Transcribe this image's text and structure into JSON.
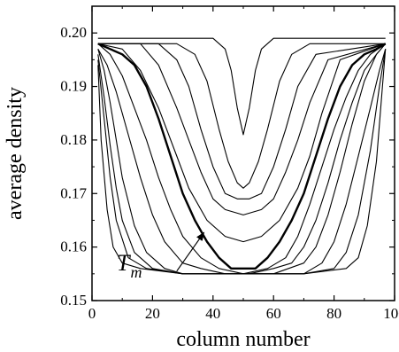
{
  "chart_data": {
    "type": "line",
    "xlabel": "column number",
    "ylabel": "average density",
    "xlim": [
      0,
      100
    ],
    "ylim": [
      0.15,
      0.205
    ],
    "xticks": [
      0,
      20,
      40,
      60,
      80,
      100
    ],
    "yticks": [
      0.15,
      0.16,
      0.17,
      0.18,
      0.19,
      0.2
    ],
    "ytick_labels": [
      "0.15",
      "0.16",
      "0.17",
      "0.18",
      "0.19",
      "0.20"
    ],
    "annotation": {
      "text_main": "T",
      "text_sub": "m",
      "arrow_from": [
        28,
        0.1555
      ],
      "arrow_to": [
        37,
        0.1627
      ]
    },
    "series": [
      {
        "bold": false,
        "x": [
          2,
          40,
          44,
          46,
          48,
          50,
          52,
          54,
          56,
          60,
          97
        ],
        "y": [
          0.199,
          0.199,
          0.197,
          0.193,
          0.186,
          0.181,
          0.186,
          0.193,
          0.197,
          0.199,
          0.199
        ]
      },
      {
        "bold": false,
        "x": [
          2,
          28,
          34,
          38,
          42,
          45,
          48,
          50,
          52,
          55,
          58,
          62,
          66,
          72,
          97
        ],
        "y": [
          0.198,
          0.198,
          0.196,
          0.191,
          0.182,
          0.176,
          0.172,
          0.171,
          0.172,
          0.176,
          0.182,
          0.191,
          0.196,
          0.198,
          0.198
        ]
      },
      {
        "bold": false,
        "x": [
          2,
          22,
          28,
          32,
          36,
          40,
          44,
          48,
          52,
          56,
          60,
          64,
          68,
          74,
          97
        ],
        "y": [
          0.198,
          0.198,
          0.195,
          0.19,
          0.182,
          0.175,
          0.17,
          0.169,
          0.169,
          0.17,
          0.175,
          0.182,
          0.19,
          0.196,
          0.198
        ]
      },
      {
        "bold": false,
        "x": [
          2,
          16,
          22,
          28,
          32,
          36,
          40,
          44,
          50,
          56,
          60,
          64,
          68,
          72,
          78,
          97
        ],
        "y": [
          0.198,
          0.198,
          0.194,
          0.186,
          0.18,
          0.174,
          0.169,
          0.167,
          0.166,
          0.167,
          0.169,
          0.174,
          0.18,
          0.187,
          0.195,
          0.198
        ]
      },
      {
        "bold": false,
        "x": [
          2,
          10,
          16,
          22,
          28,
          32,
          38,
          44,
          50,
          56,
          62,
          68,
          72,
          76,
          82,
          97
        ],
        "y": [
          0.198,
          0.197,
          0.193,
          0.186,
          0.177,
          0.171,
          0.165,
          0.162,
          0.161,
          0.162,
          0.165,
          0.171,
          0.177,
          0.185,
          0.195,
          0.198
        ]
      },
      {
        "bold": true,
        "x": [
          2,
          6,
          10,
          14,
          18,
          22,
          26,
          30,
          34,
          38,
          42,
          46,
          50,
          54,
          58,
          62,
          66,
          70,
          74,
          78,
          82,
          86,
          90,
          94,
          97
        ],
        "y": [
          0.198,
          0.197,
          0.196,
          0.194,
          0.19,
          0.184,
          0.177,
          0.17,
          0.165,
          0.161,
          0.158,
          0.156,
          0.156,
          0.156,
          0.158,
          0.161,
          0.165,
          0.17,
          0.177,
          0.184,
          0.19,
          0.194,
          0.196,
          0.197,
          0.198
        ]
      },
      {
        "bold": false,
        "x": [
          2,
          6,
          10,
          14,
          18,
          22,
          26,
          30,
          36,
          42,
          50,
          58,
          64,
          68,
          72,
          76,
          80,
          84,
          88,
          92,
          97
        ],
        "y": [
          0.198,
          0.196,
          0.192,
          0.186,
          0.18,
          0.173,
          0.167,
          0.162,
          0.158,
          0.156,
          0.155,
          0.156,
          0.158,
          0.162,
          0.168,
          0.175,
          0.182,
          0.188,
          0.193,
          0.196,
          0.198
        ]
      },
      {
        "bold": false,
        "x": [
          2,
          5,
          8,
          12,
          16,
          20,
          24,
          30,
          36,
          44,
          52,
          60,
          66,
          70,
          74,
          78,
          82,
          86,
          90,
          94,
          97
        ],
        "y": [
          0.197,
          0.194,
          0.189,
          0.181,
          0.173,
          0.166,
          0.161,
          0.157,
          0.156,
          0.155,
          0.155,
          0.156,
          0.157,
          0.16,
          0.165,
          0.172,
          0.18,
          0.187,
          0.193,
          0.196,
          0.198
        ]
      },
      {
        "bold": false,
        "x": [
          2,
          4,
          6,
          8,
          10,
          14,
          18,
          24,
          30,
          40,
          50,
          60,
          70,
          74,
          78,
          82,
          86,
          90,
          94,
          97
        ],
        "y": [
          0.197,
          0.193,
          0.187,
          0.18,
          0.173,
          0.164,
          0.159,
          0.156,
          0.155,
          0.155,
          0.155,
          0.155,
          0.157,
          0.16,
          0.166,
          0.174,
          0.183,
          0.191,
          0.196,
          0.198
        ]
      },
      {
        "bold": false,
        "x": [
          2,
          4,
          6,
          8,
          10,
          14,
          20,
          30,
          40,
          50,
          60,
          70,
          76,
          80,
          84,
          88,
          92,
          95,
          97
        ],
        "y": [
          0.196,
          0.188,
          0.179,
          0.171,
          0.165,
          0.159,
          0.156,
          0.155,
          0.155,
          0.155,
          0.155,
          0.155,
          0.157,
          0.161,
          0.168,
          0.177,
          0.186,
          0.193,
          0.197
        ]
      },
      {
        "bold": false,
        "x": [
          2,
          4,
          6,
          8,
          12,
          18,
          30,
          40,
          50,
          60,
          70,
          80,
          84,
          88,
          92,
          95,
          97
        ],
        "y": [
          0.195,
          0.184,
          0.173,
          0.165,
          0.158,
          0.156,
          0.155,
          0.155,
          0.155,
          0.155,
          0.155,
          0.156,
          0.159,
          0.166,
          0.178,
          0.19,
          0.197
        ]
      },
      {
        "bold": false,
        "x": [
          2,
          3,
          5,
          7,
          10,
          16,
          30,
          50,
          70,
          84,
          88,
          91,
          94,
          96,
          97
        ],
        "y": [
          0.194,
          0.18,
          0.167,
          0.16,
          0.157,
          0.156,
          0.155,
          0.155,
          0.155,
          0.156,
          0.158,
          0.164,
          0.176,
          0.19,
          0.197
        ]
      }
    ]
  }
}
